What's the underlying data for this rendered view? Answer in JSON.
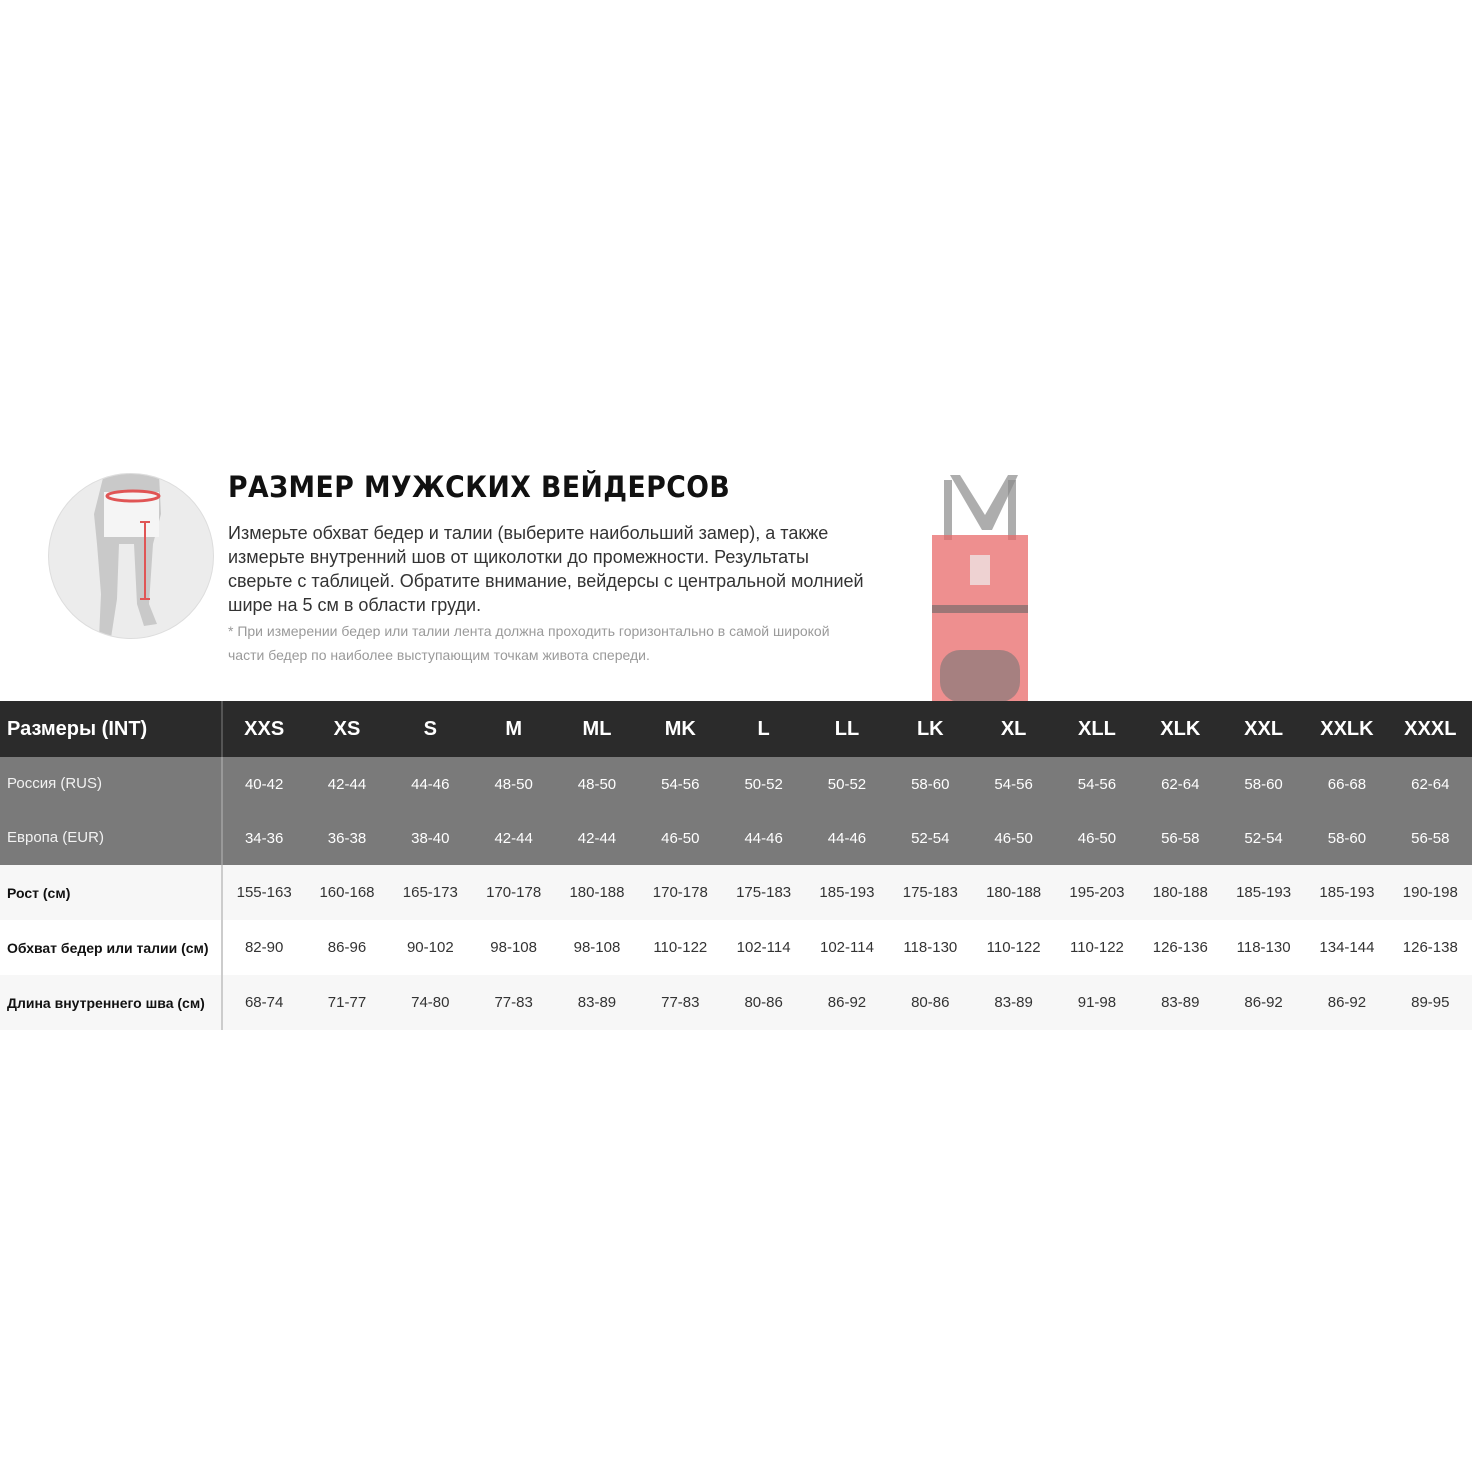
{
  "header": {
    "title": "РАЗМЕР МУЖСКИХ ВЕЙДЕРСОВ",
    "description": "Измерьте обхват бедер и талии (выберите наибольший замер), а также измерьте внутренний шов от щиколотки до промежности. Результаты сверьте с таблицей. Обратите внимание, вейдерсы с центральной молнией шире на 5 см в области груди.",
    "note": "* При измерении бедер или талии лента должна проходить горизонтально в самой широкой части бедер по наиболее выступающим точкам живота спереди."
  },
  "colors": {
    "header_bg": "#2b2b2b",
    "group_bg": "#7a7a7a",
    "accent": "#e05555"
  },
  "table": {
    "header_label": "Размеры (INT)",
    "sizes": [
      "XXS",
      "XS",
      "S",
      "M",
      "ML",
      "MK",
      "L",
      "LL",
      "LK",
      "XL",
      "XLL",
      "XLK",
      "XXL",
      "XXLK",
      "XXXL"
    ],
    "rows": [
      {
        "label": "Россия (RUS)",
        "values": [
          "40-42",
          "42-44",
          "44-46",
          "48-50",
          "48-50",
          "54-56",
          "50-52",
          "50-52",
          "58-60",
          "54-56",
          "54-56",
          "62-64",
          "58-60",
          "66-68",
          "62-64"
        ]
      },
      {
        "label": "Европа (EUR)",
        "values": [
          "34-36",
          "36-38",
          "38-40",
          "42-44",
          "42-44",
          "46-50",
          "44-46",
          "44-46",
          "52-54",
          "46-50",
          "46-50",
          "56-58",
          "52-54",
          "58-60",
          "56-58"
        ]
      },
      {
        "label": "Рост (см)",
        "values": [
          "155-163",
          "160-168",
          "165-173",
          "170-178",
          "180-188",
          "170-178",
          "175-183",
          "185-193",
          "175-183",
          "180-188",
          "195-203",
          "180-188",
          "185-193",
          "185-193",
          "190-198"
        ]
      },
      {
        "label": "Обхват бедер или талии (см)",
        "values": [
          "82-90",
          "86-96",
          "90-102",
          "98-108",
          "98-108",
          "110-122",
          "102-114",
          "102-114",
          "118-130",
          "110-122",
          "110-122",
          "126-136",
          "118-130",
          "134-144",
          "126-138"
        ]
      },
      {
        "label": "Длина внутреннего шва (см)",
        "values": [
          "68-74",
          "71-77",
          "74-80",
          "77-83",
          "83-89",
          "77-83",
          "80-86",
          "86-92",
          "80-86",
          "83-89",
          "91-98",
          "83-89",
          "86-92",
          "86-92",
          "89-95"
        ]
      }
    ]
  }
}
